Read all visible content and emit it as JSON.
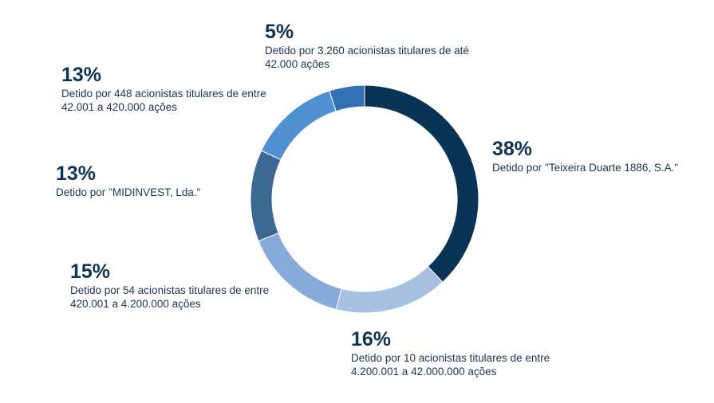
{
  "chart_data": {
    "type": "pie",
    "donut": true,
    "title": "",
    "slices": [
      {
        "value": 38,
        "pct_label": "38%",
        "label": "Detido por \"Teixeira Duarte 1886, S.A.\"",
        "color": "#0a3456"
      },
      {
        "value": 16,
        "pct_label": "16%",
        "label": "Detido por 10 acionistas titulares de entre\n4.200.001 a 42.000.000 ações",
        "color": "#a7c0e2"
      },
      {
        "value": 15,
        "pct_label": "15%",
        "label": "Detido por 54 acionistas titulares de entre\n420.001 a 4.200.000 ações",
        "color": "#86aad9"
      },
      {
        "value": 13,
        "pct_label": "13%",
        "label": "Detido por \"MIDINVEST, Lda.\"",
        "color": "#3c6894"
      },
      {
        "value": 13,
        "pct_label": "13%",
        "label": "Detido por 448 acionistas titulares de entre\n42.001 a 420.000 ações",
        "color": "#4f90d3"
      },
      {
        "value": 5,
        "pct_label": "5%",
        "label": "Detido por 3.260 acionistas titulares de até\n42.000 ações",
        "color": "#3471b4"
      }
    ]
  }
}
